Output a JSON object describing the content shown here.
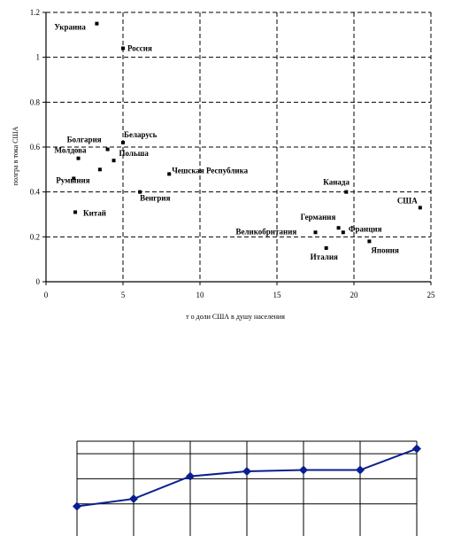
{
  "chart_data": [
    {
      "type": "scatter",
      "title": "",
      "xlabel": "т о доли США в душу населения",
      "ylabel": "полгра в тока США",
      "xlim": [
        0,
        25
      ],
      "ylim": [
        0,
        1.2
      ],
      "grid": true,
      "x_ticks": [
        "0",
        "5",
        "10",
        "15",
        "20",
        "25"
      ],
      "y_ticks": [
        "0",
        "0.2",
        "0.4",
        "0.6",
        "0.8",
        "1",
        "1.2"
      ],
      "points": [
        {
          "label": "Украина",
          "x": 3.3,
          "y": 1.15
        },
        {
          "label": "Россия",
          "x": 5.0,
          "y": 1.04
        },
        {
          "label": "Болгария",
          "x": 4.0,
          "y": 0.59
        },
        {
          "label": "Молдова",
          "x": 2.1,
          "y": 0.55
        },
        {
          "label": "Беларусь",
          "x": 5.0,
          "y": 0.62
        },
        {
          "label": "Польша",
          "x": 4.4,
          "y": 0.54
        },
        {
          "label": "",
          "x": 3.5,
          "y": 0.5
        },
        {
          "label": "Румыния",
          "x": 1.8,
          "y": 0.46
        },
        {
          "label": "Чешская Республика",
          "x": 8.0,
          "y": 0.48
        },
        {
          "label": "Венгрия",
          "x": 6.1,
          "y": 0.4
        },
        {
          "label": "Китай",
          "x": 1.9,
          "y": 0.31
        },
        {
          "label": "Канада",
          "x": 19.5,
          "y": 0.4
        },
        {
          "label": "США",
          "x": 24.3,
          "y": 0.33
        },
        {
          "label": "Германия",
          "x": 19.0,
          "y": 0.24
        },
        {
          "label": "Великобритания",
          "x": 17.5,
          "y": 0.22
        },
        {
          "label": "Франция",
          "x": 19.3,
          "y": 0.22
        },
        {
          "label": "Италия",
          "x": 18.2,
          "y": 0.15
        },
        {
          "label": "Япония",
          "x": 21.0,
          "y": 0.18
        }
      ]
    },
    {
      "type": "line",
      "title": "",
      "xlabel": "",
      "ylabel": "",
      "grid": true,
      "color": "#0a1f8f",
      "x": [
        1,
        2,
        3,
        4,
        5,
        6,
        7
      ],
      "values": [
        0.9,
        1.2,
        2.1,
        2.3,
        2.35,
        2.35,
        3.2
      ],
      "ylim": [
        0,
        3.5
      ]
    }
  ]
}
